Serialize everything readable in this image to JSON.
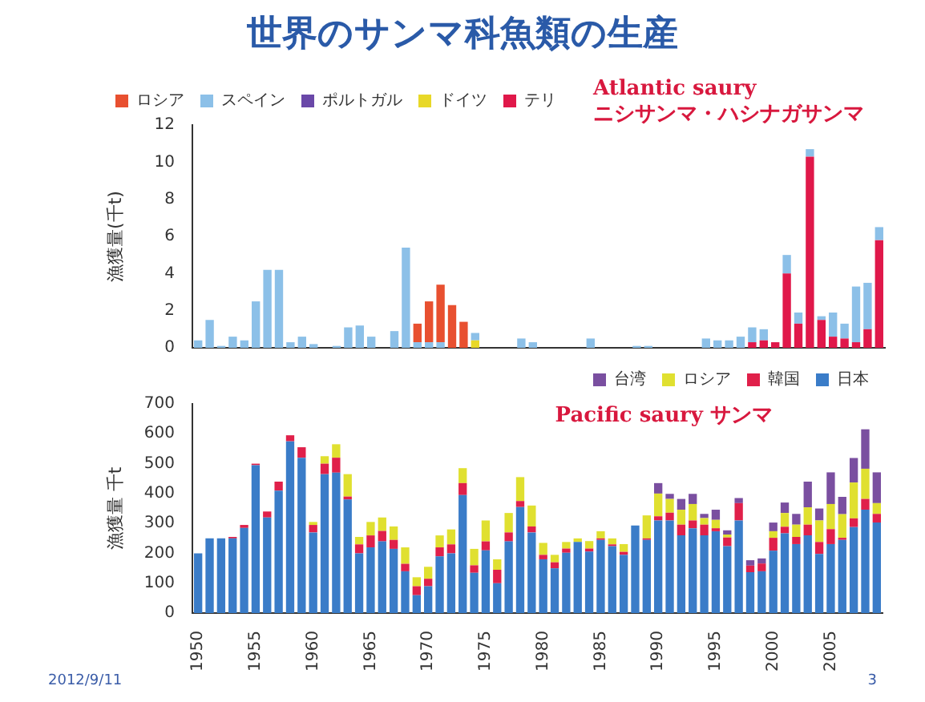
{
  "chart_data": [
    {
      "type": "bar",
      "title": "世界のサンマ科魚類の生産",
      "ylabel": "漁獲量(千t)",
      "stacked": true,
      "legend": "top left",
      "tick_labels": "y",
      "grid": false,
      "categories": [
        "1950",
        null,
        null,
        null,
        null,
        "1955",
        null,
        null,
        null,
        null,
        "1960",
        null,
        null,
        null,
        null,
        "1965",
        null,
        null,
        null,
        null,
        "1970",
        null,
        null,
        null,
        null,
        "1975",
        null,
        null,
        null,
        null,
        "1980",
        null,
        null,
        null,
        null,
        "1985",
        null,
        null,
        null,
        null,
        "1990",
        null,
        null,
        null,
        null,
        "1995",
        null,
        null,
        null,
        null,
        "2000",
        null,
        null,
        null,
        null,
        "2005",
        null,
        null,
        null,
        null
      ],
      "ylim": [
        0,
        12
      ],
      "yticks": [
        0,
        2,
        4,
        6,
        8,
        10,
        12
      ],
      "annotations": [
        "Atlantic saury",
        "ニシサンマ・ハシナガサンマ"
      ],
      "series": [
        {
          "name": "テリ",
          "color": "#e0184a",
          "values": [
            0,
            0,
            0,
            0,
            0,
            0,
            0,
            0,
            0,
            0,
            0,
            0,
            0,
            0,
            0,
            0,
            0,
            0,
            0,
            0,
            0,
            0,
            0,
            0,
            0,
            0,
            0,
            0,
            0,
            0,
            0,
            0,
            0,
            0,
            0,
            0,
            0,
            0,
            0,
            0,
            0,
            0,
            0,
            0,
            0,
            0,
            0,
            0,
            0.3,
            0.4,
            0.3,
            4.0,
            1.3,
            10.3,
            1.5,
            0.6,
            0.5,
            0.3,
            1.0,
            5.8
          ]
        },
        {
          "name": "ドイツ",
          "color": "#e8d828",
          "values": [
            0,
            0,
            0,
            0,
            0,
            0,
            0,
            0,
            0,
            0,
            0,
            0,
            0,
            0,
            0,
            0,
            0,
            0,
            0,
            0,
            0,
            0,
            0,
            0,
            0.4,
            0,
            0,
            0,
            0,
            0,
            0,
            0,
            0,
            0,
            0,
            0,
            0,
            0,
            0,
            0,
            0,
            0,
            0,
            0,
            0,
            0,
            0,
            0,
            0,
            0,
            0,
            0,
            0,
            0,
            0,
            0,
            0,
            0,
            0,
            0
          ]
        },
        {
          "name": "ポルトガル",
          "color": "#6a48a8",
          "values": [
            0,
            0,
            0,
            0,
            0,
            0,
            0,
            0,
            0,
            0,
            0,
            0,
            0,
            0,
            0,
            0,
            0,
            0,
            0,
            0,
            0,
            0,
            0,
            0,
            0,
            0,
            0,
            0,
            0,
            0,
            0,
            0,
            0,
            0,
            0,
            0,
            0,
            0,
            0,
            0,
            0,
            0,
            0,
            0,
            0,
            0,
            0,
            0,
            0,
            0,
            0,
            0,
            0,
            0,
            0,
            0,
            0,
            0,
            0,
            0
          ]
        },
        {
          "name": "スペイン",
          "color": "#8cc0e8",
          "values": [
            0.4,
            1.5,
            0.1,
            0.6,
            0.4,
            2.5,
            4.2,
            4.2,
            0.3,
            0.6,
            0.2,
            0,
            0.1,
            1.1,
            1.2,
            0.6,
            0,
            0.9,
            5.4,
            0.3,
            0.3,
            0.3,
            0,
            0,
            0.4,
            0,
            0,
            0,
            0.5,
            0.3,
            0,
            0,
            0,
            0,
            0.5,
            0,
            0,
            0,
            0.1,
            0.1,
            0,
            0,
            0,
            0,
            0.5,
            0.4,
            0.4,
            0.6,
            0.8,
            0.6,
            0,
            1.0,
            0.6,
            0.4,
            0.2,
            1.3,
            0.8,
            3.0,
            2.5,
            0.7
          ]
        },
        {
          "name": "ロシア",
          "color": "#e85030",
          "values": [
            0,
            0,
            0,
            0,
            0,
            0,
            0,
            0,
            0,
            0,
            0,
            0,
            0,
            0,
            0,
            0,
            0,
            0,
            0,
            1.0,
            2.2,
            3.1,
            2.3,
            1.4,
            0,
            0,
            0,
            0,
            0,
            0,
            0,
            0,
            0,
            0,
            0,
            0,
            0,
            0,
            0,
            0,
            0,
            0,
            0,
            0,
            0,
            0,
            0,
            0,
            0,
            0,
            0,
            0,
            0,
            0,
            0,
            0,
            0,
            0,
            0,
            0
          ]
        }
      ]
    },
    {
      "type": "bar",
      "ylabel": "漁獲量 千t",
      "stacked": true,
      "legend": "top right",
      "grid": false,
      "categories": [
        "1950",
        null,
        null,
        null,
        null,
        "1955",
        null,
        null,
        null,
        null,
        "1960",
        null,
        null,
        null,
        null,
        "1965",
        null,
        null,
        null,
        null,
        "1970",
        null,
        null,
        null,
        null,
        "1975",
        null,
        null,
        null,
        null,
        "1980",
        null,
        null,
        null,
        null,
        "1985",
        null,
        null,
        null,
        null,
        "1990",
        null,
        null,
        null,
        null,
        "1995",
        null,
        null,
        null,
        null,
        "2000",
        null,
        null,
        null,
        null,
        "2005",
        null,
        null,
        null,
        null
      ],
      "ylim": [
        0,
        700
      ],
      "yticks": [
        0,
        100,
        200,
        300,
        400,
        500,
        600,
        700
      ],
      "annotations": [
        "Pacific saury サンマ",
        "2012/9/11",
        "3"
      ],
      "series": [
        {
          "name": "日本",
          "color": "#3a7cc8",
          "values": [
            200,
            250,
            250,
            250,
            285,
            495,
            320,
            410,
            575,
            520,
            270,
            465,
            470,
            380,
            200,
            220,
            240,
            215,
            140,
            60,
            90,
            190,
            200,
            395,
            135,
            210,
            100,
            240,
            355,
            270,
            180,
            150,
            202,
            238,
            206,
            245,
            224,
            195,
            293,
            245,
            310,
            310,
            260,
            284,
            260,
            274,
            224,
            310,
            137,
            140,
            209,
            267,
            231,
            260,
            198,
            231,
            245,
            288,
            346,
            303
          ]
        },
        {
          "name": "韓国",
          "color": "#e0204a",
          "values": [
            0,
            0,
            0,
            5,
            10,
            5,
            20,
            30,
            20,
            35,
            25,
            35,
            50,
            10,
            30,
            40,
            35,
            30,
            25,
            30,
            25,
            30,
            30,
            40,
            25,
            30,
            45,
            30,
            20,
            20,
            15,
            20,
            14,
            0,
            10,
            5,
            6,
            10,
            0,
            5,
            14,
            26,
            36,
            26,
            36,
            10,
            29,
            58,
            22,
            26,
            43,
            22,
            24,
            36,
            40,
            50,
            7,
            29,
            36,
            29
          ]
        },
        {
          "name": "ロシア",
          "color": "#e0e030",
          "values": [
            0,
            0,
            0,
            0,
            0,
            0,
            0,
            0,
            0,
            0,
            10,
            25,
            45,
            75,
            25,
            45,
            45,
            45,
            55,
            30,
            40,
            40,
            50,
            50,
            55,
            70,
            35,
            65,
            80,
            70,
            40,
            25,
            22,
            12,
            25,
            24,
            20,
            26,
            0,
            77,
            76,
            46,
            50,
            55,
            22,
            28,
            10,
            0,
            0,
            0,
            22,
            46,
            41,
            58,
            72,
            84,
            79,
            120,
            101,
            36
          ]
        },
        {
          "name": "台湾",
          "color": "#7a4fa0",
          "values": [
            0,
            0,
            0,
            0,
            0,
            0,
            0,
            0,
            0,
            0,
            0,
            0,
            0,
            0,
            0,
            0,
            0,
            0,
            0,
            0,
            0,
            0,
            0,
            0,
            0,
            0,
            0,
            0,
            0,
            0,
            0,
            0,
            0,
            0,
            0,
            0,
            0,
            0,
            0,
            0,
            35,
            17,
            36,
            34,
            14,
            34,
            14,
            17,
            18,
            17,
            29,
            35,
            36,
            86,
            40,
            106,
            58,
            82,
            132,
            103
          ]
        }
      ]
    }
  ]
}
